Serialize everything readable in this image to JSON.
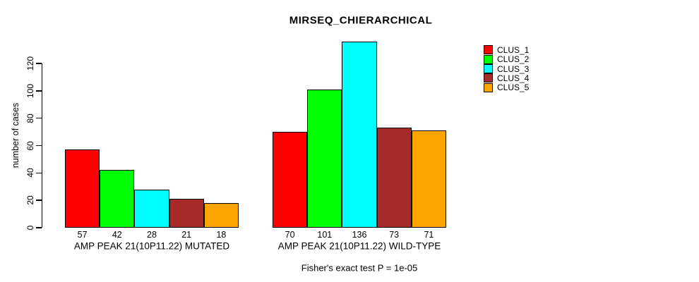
{
  "title": "MIRSEQ_CHIERARCHICAL",
  "ylabel": "number of cases",
  "footer": "Fisher's exact test P = 1e-05",
  "legend": {
    "items": [
      {
        "label": "CLUS_1",
        "color": "#FF0000"
      },
      {
        "label": "CLUS_2",
        "color": "#00FF00"
      },
      {
        "label": "CLUS_3",
        "color": "#00FFFF"
      },
      {
        "label": "CLUS_4",
        "color": "#A52A2A"
      },
      {
        "label": "CLUS_5",
        "color": "#FFA500"
      }
    ]
  },
  "chart_data": {
    "type": "bar",
    "title": "MIRSEQ_CHIERARCHICAL",
    "xlabel": "",
    "ylabel": "number of cases",
    "categories": [
      "AMP PEAK 21(10P11.22) MUTATED",
      "AMP PEAK 21(10P11.22) WILD-TYPE"
    ],
    "series": [
      {
        "name": "CLUS_1",
        "color": "#FF0000",
        "values": [
          57,
          70
        ]
      },
      {
        "name": "CLUS_2",
        "color": "#00FF00",
        "values": [
          42,
          101
        ]
      },
      {
        "name": "CLUS_3",
        "color": "#00FFFF",
        "values": [
          28,
          136
        ]
      },
      {
        "name": "CLUS_4",
        "color": "#A52A2A",
        "values": [
          21,
          73
        ]
      },
      {
        "name": "CLUS_5",
        "color": "#FFA500",
        "values": [
          18,
          71
        ]
      }
    ],
    "bar_labels": [
      [
        57,
        42,
        28,
        21,
        18
      ],
      [
        70,
        101,
        136,
        73,
        71
      ]
    ],
    "yticks": [
      0,
      20,
      40,
      60,
      80,
      100,
      120
    ],
    "ylim": [
      0,
      140
    ],
    "grid": false,
    "legend_position": "top-right",
    "annotation": "Fisher's exact test P = 1e-05"
  }
}
